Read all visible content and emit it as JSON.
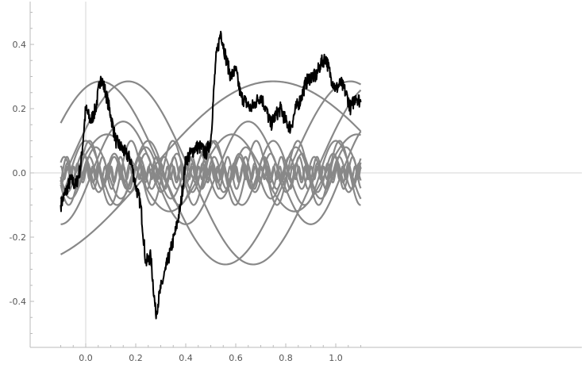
{
  "chart_data": {
    "type": "line",
    "title": "",
    "xlabel": "",
    "ylabel": "",
    "xlim": [
      -0.115,
      1.115
    ],
    "ylim": [
      -0.545,
      0.525
    ],
    "grid": false,
    "legend": "none",
    "x_ticks": [
      {
        "value": 0.0,
        "label": "0.0"
      },
      {
        "value": 0.2,
        "label": "0.2"
      },
      {
        "value": 0.4,
        "label": "0.4"
      },
      {
        "value": 0.6,
        "label": "0.6"
      },
      {
        "value": 0.8,
        "label": "0.8"
      },
      {
        "value": 1.0,
        "label": "1.0"
      }
    ],
    "y_ticks": [
      {
        "value": -0.4,
        "label": "-0.4"
      },
      {
        "value": -0.2,
        "label": "-0.2"
      },
      {
        "value": 0.0,
        "label": "0.0"
      },
      {
        "value": 0.2,
        "label": "0.2"
      },
      {
        "value": 0.4,
        "label": "0.4"
      }
    ],
    "colors": {
      "path": "#000000",
      "components": "#888888",
      "axis": "#bbbbbb",
      "tick_label": "#555555"
    },
    "x_range": [
      -0.1,
      1.1
    ],
    "series": [
      {
        "role": "path",
        "x": [
          -0.1,
          -0.08,
          -0.06,
          -0.04,
          -0.02,
          0.0,
          0.02,
          0.04,
          0.06,
          0.08,
          0.1,
          0.12,
          0.14,
          0.16,
          0.18,
          0.2,
          0.22,
          0.24,
          0.26,
          0.28,
          0.3,
          0.32,
          0.34,
          0.36,
          0.38,
          0.4,
          0.42,
          0.44,
          0.46,
          0.48,
          0.5,
          0.52,
          0.54,
          0.56,
          0.58,
          0.6,
          0.62,
          0.64,
          0.66,
          0.68,
          0.7,
          0.72,
          0.74,
          0.76,
          0.78,
          0.8,
          0.82,
          0.84,
          0.86,
          0.88,
          0.9,
          0.92,
          0.94,
          0.96,
          0.98,
          1.0,
          1.02,
          1.04,
          1.06,
          1.08,
          1.1
        ],
        "y": [
          -0.1,
          -0.06,
          -0.02,
          -0.04,
          0.02,
          0.2,
          0.16,
          0.2,
          0.3,
          0.25,
          0.18,
          0.1,
          0.08,
          0.06,
          0.04,
          -0.04,
          -0.1,
          -0.28,
          -0.26,
          -0.44,
          -0.36,
          -0.3,
          -0.24,
          -0.18,
          -0.1,
          0.04,
          0.06,
          0.08,
          0.08,
          0.06,
          0.1,
          0.35,
          0.44,
          0.36,
          0.3,
          0.32,
          0.24,
          0.22,
          0.2,
          0.22,
          0.24,
          0.2,
          0.15,
          0.18,
          0.2,
          0.16,
          0.14,
          0.2,
          0.23,
          0.28,
          0.3,
          0.3,
          0.34,
          0.36,
          0.3,
          0.26,
          0.28,
          0.25,
          0.2,
          0.24,
          0.22
        ]
      },
      {
        "role": "component",
        "amplitude": 0.285,
        "frequency": 1,
        "phase": 1.204
      },
      {
        "role": "component",
        "amplitude": 0.285,
        "frequency": 1,
        "phase": 0.5027
      },
      {
        "role": "component",
        "amplitude": 0.285,
        "frequency": 0.5,
        "phase": -0.7855
      },
      {
        "role": "component",
        "amplitude": 0.16,
        "frequency": 2,
        "phase": -0.3142
      },
      {
        "role": "component",
        "amplitude": 0.12,
        "frequency": 2,
        "phase": 0.5027
      },
      {
        "role": "component",
        "amplitude": 0.1,
        "frequency": 4,
        "phase": 1.571
      },
      {
        "role": "component",
        "amplitude": 0.08,
        "frequency": 5,
        "phase": 0.3
      },
      {
        "role": "component",
        "amplitude": 0.1,
        "frequency": 6,
        "phase": 1.0
      },
      {
        "role": "component",
        "amplitude": 0.06,
        "frequency": 8,
        "phase": 2.1
      },
      {
        "role": "component",
        "amplitude": 0.05,
        "frequency": 10,
        "phase": 0.7
      },
      {
        "role": "component",
        "amplitude": 0.05,
        "frequency": 14,
        "phase": 1.9
      },
      {
        "role": "component",
        "amplitude": 0.03,
        "frequency": 24,
        "phase": 0.2
      },
      {
        "role": "component",
        "amplitude": 0.02,
        "frequency": 40,
        "phase": 1.1
      }
    ]
  }
}
